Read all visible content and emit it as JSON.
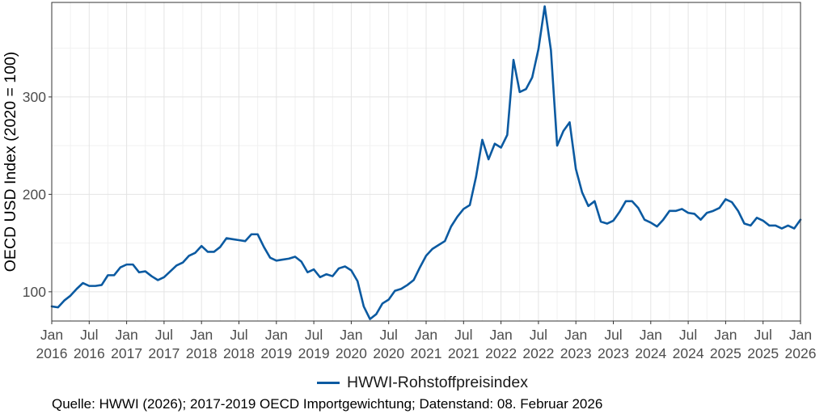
{
  "caption": "Quelle: HWWI (2026); 2017-2019 OECD Importgewichtung; Datenstand: 08. Februar 2026",
  "colors": {
    "series": "#0B5AA1",
    "grid_major": "#e4e4e4",
    "grid_minor": "#f1f1f1",
    "axis_text": "#4d4d4d",
    "title_text": "#000000"
  },
  "chart_data": {
    "type": "line",
    "title": "",
    "xlabel": "",
    "ylabel": "OECD USD Index (2020 = 100)",
    "ylim": [
      70,
      397
    ],
    "yticks": [
      100,
      200,
      300
    ],
    "xlim": [
      "2016-01",
      "2026-01"
    ],
    "xticks": [
      {
        "date": "2016-01",
        "line1": "Jan",
        "line2": "2016"
      },
      {
        "date": "2016-07",
        "line1": "Jul",
        "line2": "2016"
      },
      {
        "date": "2017-01",
        "line1": "Jan",
        "line2": "2017"
      },
      {
        "date": "2017-07",
        "line1": "Jul",
        "line2": "2017"
      },
      {
        "date": "2018-01",
        "line1": "Jan",
        "line2": "2018"
      },
      {
        "date": "2018-07",
        "line1": "Jul",
        "line2": "2018"
      },
      {
        "date": "2019-01",
        "line1": "Jan",
        "line2": "2019"
      },
      {
        "date": "2019-07",
        "line1": "Jul",
        "line2": "2019"
      },
      {
        "date": "2020-01",
        "line1": "Jan",
        "line2": "2020"
      },
      {
        "date": "2020-07",
        "line1": "Jul",
        "line2": "2020"
      },
      {
        "date": "2021-01",
        "line1": "Jan",
        "line2": "2021"
      },
      {
        "date": "2021-07",
        "line1": "Jul",
        "line2": "2021"
      },
      {
        "date": "2022-01",
        "line1": "Jan",
        "line2": "2022"
      },
      {
        "date": "2022-07",
        "line1": "Jul",
        "line2": "2022"
      },
      {
        "date": "2023-01",
        "line1": "Jan",
        "line2": "2023"
      },
      {
        "date": "2023-07",
        "line1": "Jul",
        "line2": "2023"
      },
      {
        "date": "2024-01",
        "line1": "Jan",
        "line2": "2024"
      },
      {
        "date": "2024-07",
        "line1": "Jul",
        "line2": "2024"
      },
      {
        "date": "2025-01",
        "line1": "Jan",
        "line2": "2025"
      },
      {
        "date": "2025-07",
        "line1": "Jul",
        "line2": "2025"
      },
      {
        "date": "2026-01",
        "line1": "Jan",
        "line2": "2026"
      }
    ],
    "grid": true,
    "legend": "bottom",
    "series": [
      {
        "name": "HWWI-Rohstoffpreisindex",
        "color": "#0B5AA1",
        "x": [
          "2016-01",
          "2016-02",
          "2016-03",
          "2016-04",
          "2016-05",
          "2016-06",
          "2016-07",
          "2016-08",
          "2016-09",
          "2016-10",
          "2016-11",
          "2016-12",
          "2017-01",
          "2017-02",
          "2017-03",
          "2017-04",
          "2017-05",
          "2017-06",
          "2017-07",
          "2017-08",
          "2017-09",
          "2017-10",
          "2017-11",
          "2017-12",
          "2018-01",
          "2018-02",
          "2018-03",
          "2018-04",
          "2018-05",
          "2018-06",
          "2018-07",
          "2018-08",
          "2018-09",
          "2018-10",
          "2018-11",
          "2018-12",
          "2019-01",
          "2019-02",
          "2019-03",
          "2019-04",
          "2019-05",
          "2019-06",
          "2019-07",
          "2019-08",
          "2019-09",
          "2019-10",
          "2019-11",
          "2019-12",
          "2020-01",
          "2020-02",
          "2020-03",
          "2020-04",
          "2020-05",
          "2020-06",
          "2020-07",
          "2020-08",
          "2020-09",
          "2020-10",
          "2020-11",
          "2020-12",
          "2021-01",
          "2021-02",
          "2021-03",
          "2021-04",
          "2021-05",
          "2021-06",
          "2021-07",
          "2021-08",
          "2021-09",
          "2021-10",
          "2021-11",
          "2021-12",
          "2022-01",
          "2022-02",
          "2022-03",
          "2022-04",
          "2022-05",
          "2022-06",
          "2022-07",
          "2022-08",
          "2022-09",
          "2022-10",
          "2022-11",
          "2022-12",
          "2023-01",
          "2023-02",
          "2023-03",
          "2023-04",
          "2023-05",
          "2023-06",
          "2023-07",
          "2023-08",
          "2023-09",
          "2023-10",
          "2023-11",
          "2023-12",
          "2024-01",
          "2024-02",
          "2024-03",
          "2024-04",
          "2024-05",
          "2024-06",
          "2024-07",
          "2024-08",
          "2024-09",
          "2024-10",
          "2024-11",
          "2024-12",
          "2025-01",
          "2025-02",
          "2025-03",
          "2025-04",
          "2025-05",
          "2025-06",
          "2025-07",
          "2025-08",
          "2025-09",
          "2025-10",
          "2025-11",
          "2025-12",
          "2026-01"
        ],
        "values": [
          85,
          84,
          91,
          96,
          103,
          109,
          106,
          106,
          107,
          117,
          117,
          125,
          128,
          128,
          120,
          121,
          116,
          112,
          115,
          121,
          127,
          130,
          137,
          140,
          147,
          141,
          141,
          146,
          155,
          154,
          153,
          152,
          159,
          159,
          146,
          135,
          132,
          133,
          134,
          136,
          131,
          120,
          123,
          115,
          118,
          116,
          124,
          126,
          122,
          111,
          85,
          72,
          77,
          88,
          92,
          101,
          103,
          107,
          112,
          125,
          137,
          144,
          148,
          152,
          167,
          177,
          185,
          189,
          218,
          256,
          236,
          252,
          248,
          261,
          338,
          305,
          308,
          320,
          349,
          393,
          348,
          250,
          265,
          274,
          226,
          202,
          188,
          193,
          172,
          170,
          173,
          182,
          193,
          193,
          186,
          174,
          171,
          167,
          174,
          183,
          183,
          185,
          181,
          180,
          174,
          181,
          183,
          186,
          195,
          192,
          183,
          170,
          168,
          176,
          173,
          168,
          168,
          165,
          168,
          165,
          174
        ]
      }
    ]
  }
}
